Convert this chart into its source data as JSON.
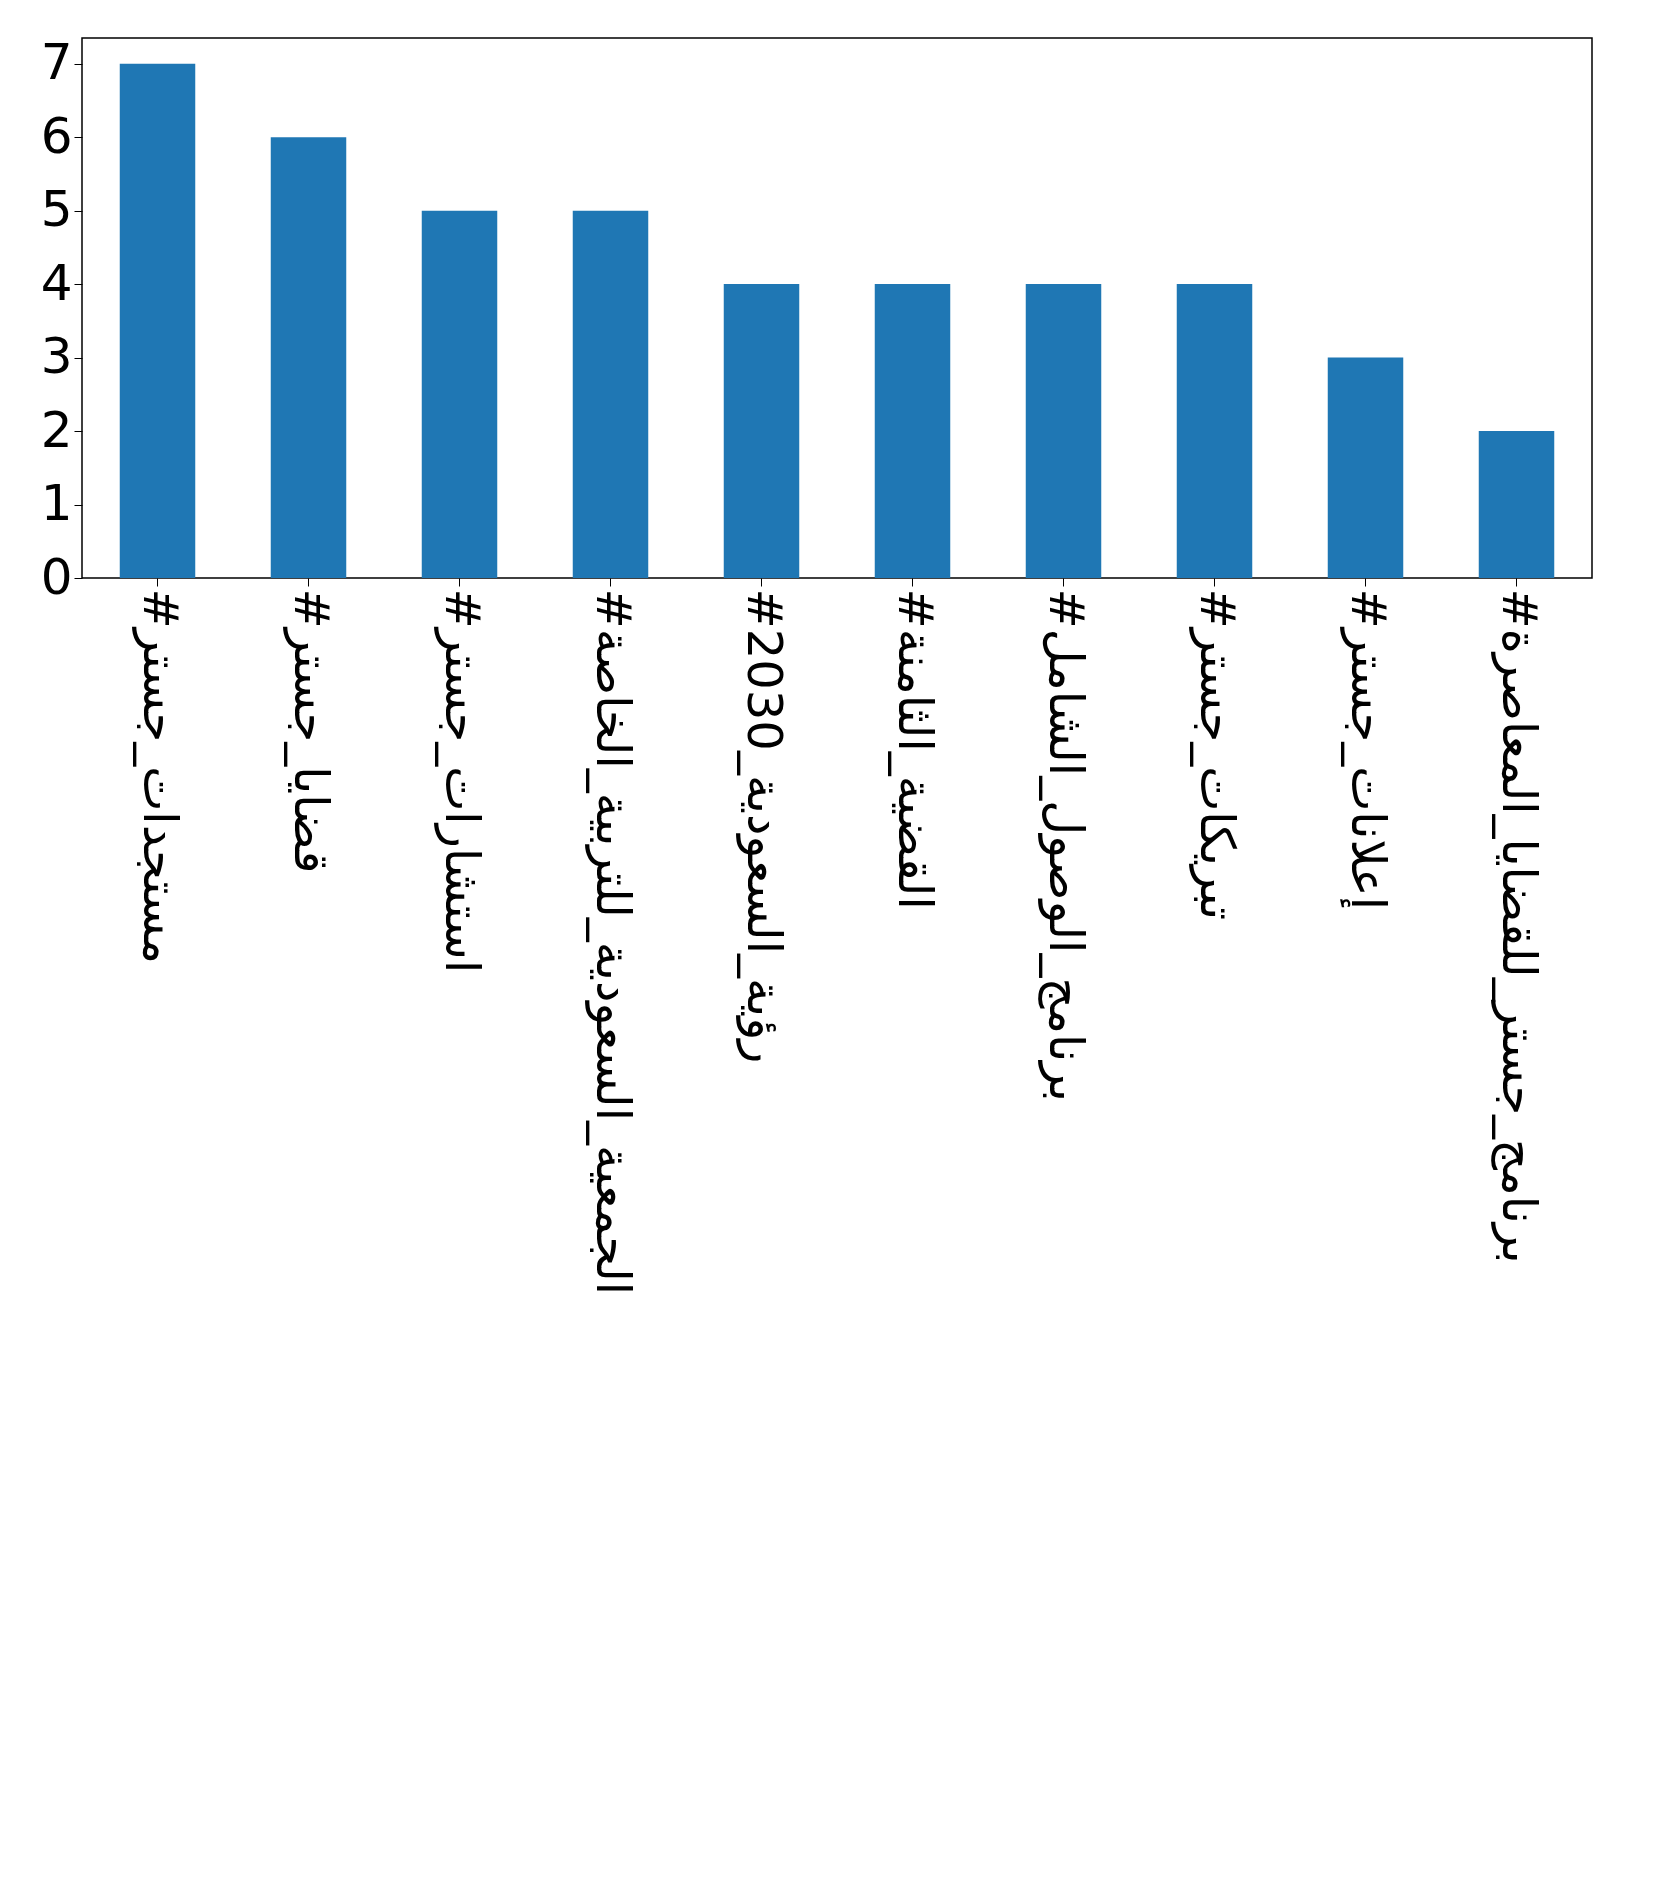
{
  "chart_data": {
    "type": "bar",
    "categories": [
      "#مستجدات_جستر",
      "#قضايا_جستر",
      "#استشارات_جستر",
      "#الجمعية_السعودية_للتربية_الخاصة",
      "#رؤية_السعودية_2030",
      "#القضية_الثامنة",
      "#برنامج_الوصول_الشامل",
      "#تبريكات_جستر",
      "#إعلانات_جستر",
      "#برنامج_جستر_للقضايا_المعاصرة"
    ],
    "values": [
      7,
      6,
      5,
      5,
      4,
      4,
      4,
      4,
      3,
      2
    ],
    "color": "#1f77b4",
    "ylim": [
      0,
      7.35
    ],
    "yticks": [
      0,
      1,
      2,
      3,
      4,
      5,
      6,
      7
    ],
    "grid": false
  }
}
